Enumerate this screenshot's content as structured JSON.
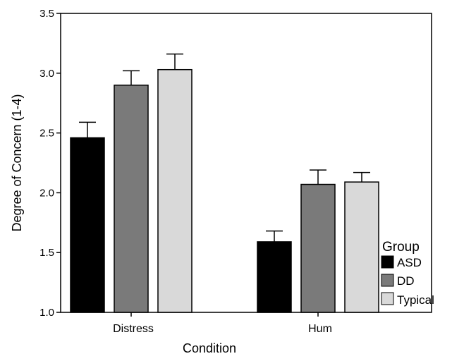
{
  "chart_data": {
    "type": "bar",
    "title": "",
    "xlabel": "Condition",
    "ylabel": "Degree of Concern (1-4)",
    "categories": [
      "Distress",
      "Hum"
    ],
    "ylim": [
      1.0,
      3.5
    ],
    "yticks": [
      "1.0",
      "1.5",
      "2.0",
      "2.5",
      "3.0",
      "3.5"
    ],
    "grid": false,
    "legend_position": "right",
    "legend_title": "Group",
    "series": [
      {
        "name": "ASD",
        "color": "#000000",
        "values": [
          2.46,
          1.59
        ],
        "errors": [
          0.13,
          0.09
        ]
      },
      {
        "name": "DD",
        "color": "#7a7a7a",
        "values": [
          2.9,
          2.07
        ],
        "errors": [
          0.12,
          0.12
        ]
      },
      {
        "name": "Typical",
        "color": "#d9d9d9",
        "values": [
          3.03,
          2.09
        ],
        "errors": [
          0.13,
          0.08
        ]
      }
    ]
  }
}
